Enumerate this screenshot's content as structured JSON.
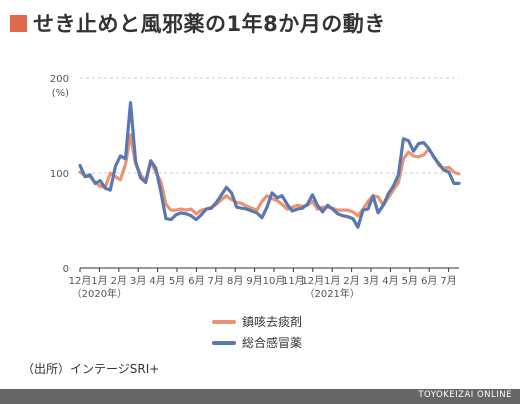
{
  "title": "せき止めと風邪薬の1年8か月の動き",
  "colors": {
    "accent": "#E0694A",
    "series1": "#EB9372",
    "series2": "#5B77B0",
    "grid": "#CCCCCC",
    "axis": "#333333",
    "footer": "#666666"
  },
  "source": "（出所）インテージSRI+",
  "footer": "TOYOKEIZAI ONLINE",
  "chart_data": {
    "type": "line",
    "ylabel": "(%)",
    "ylim": [
      0,
      200
    ],
    "yticks": [
      0,
      100,
      200
    ],
    "x_tick_labels": [
      "12月",
      "1月",
      "2月",
      "3月",
      "4月",
      "5月",
      "6月",
      "7月",
      "8月",
      "9月",
      "10月",
      "11月",
      "12月",
      "1月",
      "2月",
      "3月",
      "4月",
      "5月",
      "6月",
      "7月"
    ],
    "year_labels": [
      {
        "text": "（2020年）",
        "at_tick": 1
      },
      {
        "text": "（2021年）",
        "at_tick": 13
      }
    ],
    "grid": true,
    "legend_position": "bottom-center",
    "series": [
      {
        "name": "鎮咳去痰剤",
        "color": "#EB9372",
        "values": [
          101,
          97,
          96,
          90,
          86,
          85,
          100,
          96,
          93,
          109,
          140,
          110,
          98,
          92,
          112,
          101,
          91,
          67,
          61,
          61,
          62,
          61,
          62,
          57,
          61,
          62,
          64,
          67,
          72,
          76,
          72,
          69,
          68,
          65,
          63,
          61,
          70,
          76,
          73,
          71,
          67,
          62,
          64,
          66,
          65,
          66,
          70,
          62,
          64,
          64,
          63,
          61,
          61,
          61,
          59,
          55,
          62,
          70,
          76,
          75,
          66,
          74,
          82,
          90,
          115,
          122,
          118,
          117,
          119,
          125,
          118,
          108,
          105,
          106,
          101,
          99
        ]
      },
      {
        "name": "総合感冒薬",
        "color": "#5B77B0",
        "values": [
          108,
          96,
          98,
          89,
          92,
          84,
          82,
          107,
          118,
          115,
          174,
          112,
          95,
          90,
          113,
          105,
          80,
          52,
          51,
          56,
          58,
          57,
          55,
          51,
          56,
          62,
          63,
          69,
          77,
          85,
          79,
          64,
          63,
          62,
          60,
          58,
          53,
          64,
          79,
          74,
          76,
          67,
          60,
          62,
          63,
          67,
          77,
          66,
          59,
          66,
          62,
          57,
          55,
          54,
          52,
          43,
          61,
          62,
          76,
          58,
          66,
          78,
          86,
          98,
          136,
          134,
          123,
          131,
          132,
          126,
          117,
          110,
          103,
          101,
          89,
          89
        ]
      }
    ]
  }
}
